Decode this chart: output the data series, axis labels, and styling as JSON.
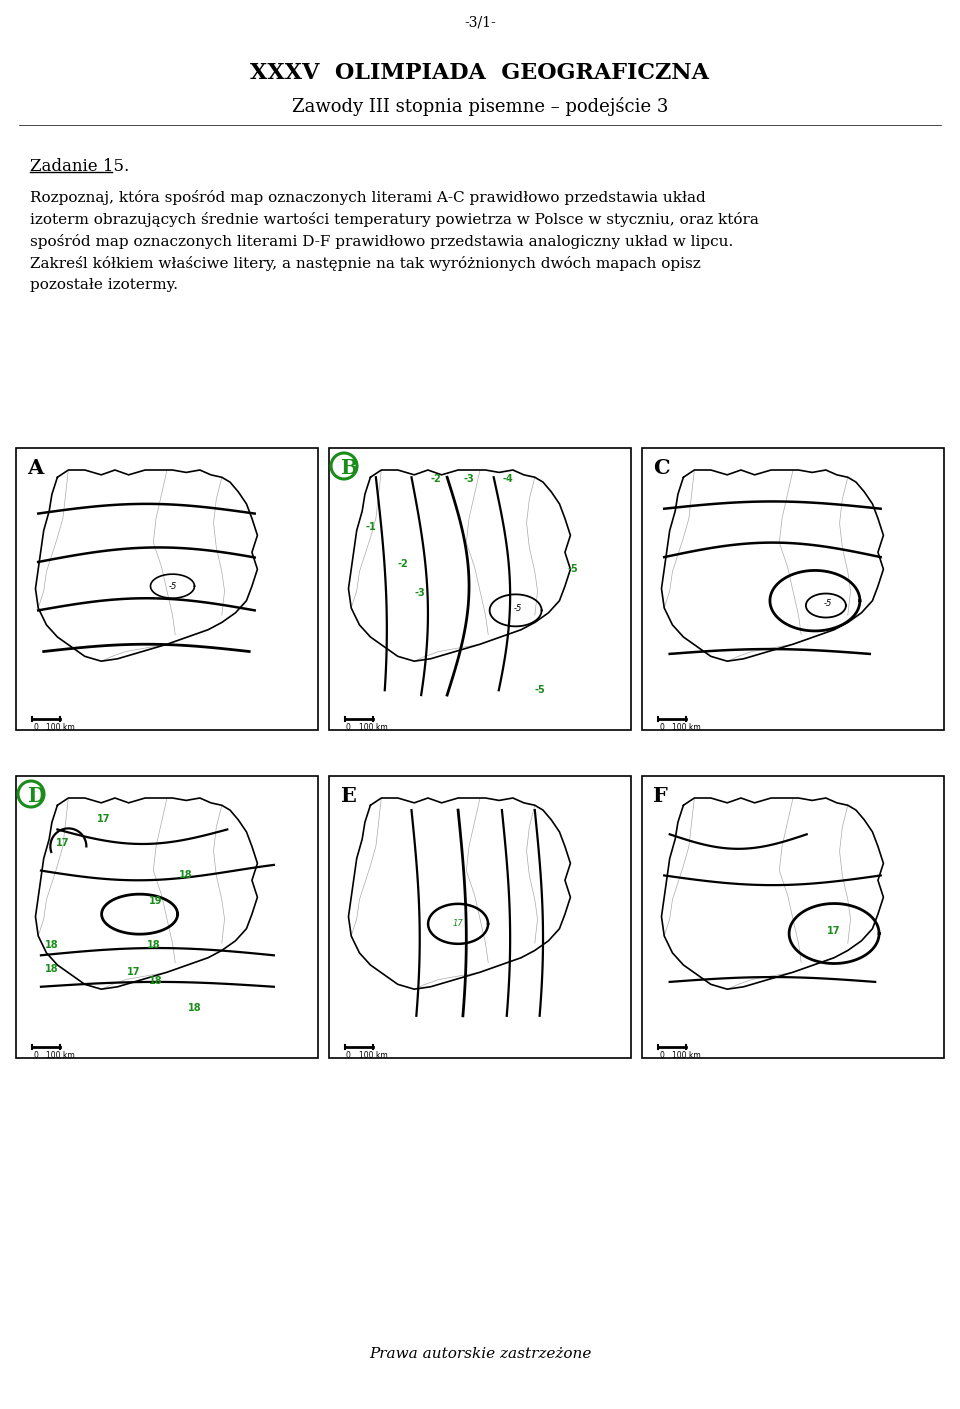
{
  "page_number": "-3/1-",
  "title_line1": "XXXV  OLIMPIADA  GEOGRAFICZNA",
  "title_line2": "Zawody III stopnia pisemne – podejście 3",
  "task_label": "Zadanie 15.",
  "task_lines": [
    "Rozpoznaj, która spośród map oznaczonych literami A-C prawidłowo przedstawia układ",
    "izoterm obrazujących średnie wartości temperatury powietrza w Polsce w styczniu, oraz która",
    "spośród map oznaczonych literami D-F prawidłowo przedstawia analogiczny układ w lipcu.",
    "Zakreśl kółkiem właściwe litery, a następnie na tak wyróżnionych dwóch mapach opisz",
    "pozostałe izotermy."
  ],
  "footer": "Prawa autorskie zastrzeżone",
  "map_labels_top": [
    "A",
    "B",
    "C"
  ],
  "map_labels_bottom": [
    "D",
    "E",
    "F"
  ],
  "circled_labels": [
    "B",
    "D"
  ],
  "green_color": "#1a8c1a",
  "background": "#ffffff"
}
